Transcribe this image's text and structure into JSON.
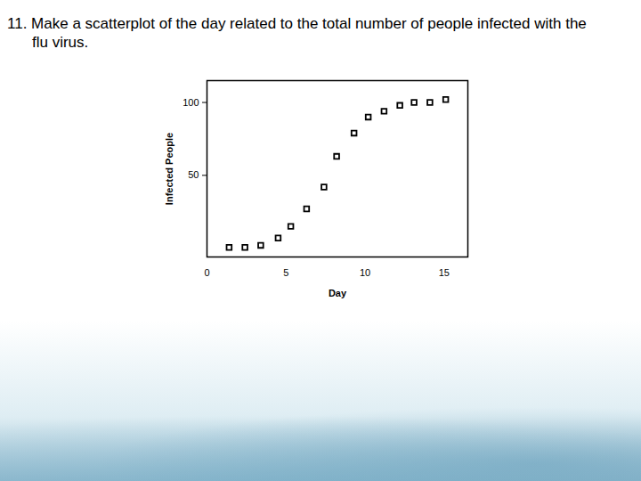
{
  "chart_data": {
    "type": "scatter",
    "title": "11. Make a scatterplot of the day related to the total number of people infected with the flu virus.",
    "x_label": "Day",
    "y_label": "Infected People",
    "x": [
      1.4,
      2.4,
      3.4,
      4.5,
      5.3,
      6.3,
      7.4,
      8.2,
      9.3,
      10.2,
      11.2,
      12.2,
      13.1,
      14.1,
      15.1
    ],
    "values": [
      0.6,
      0.6,
      2,
      7,
      15,
      27,
      42,
      63,
      79,
      90,
      94,
      98,
      100,
      100,
      102
    ],
    "color": "#000000",
    "marker": "square",
    "xlim": [
      0,
      16.5
    ],
    "xticks": [
      0,
      5,
      10,
      15
    ],
    "ylim": [
      -6,
      115
    ],
    "yticks": [
      50,
      100
    ],
    "grid": false
  }
}
